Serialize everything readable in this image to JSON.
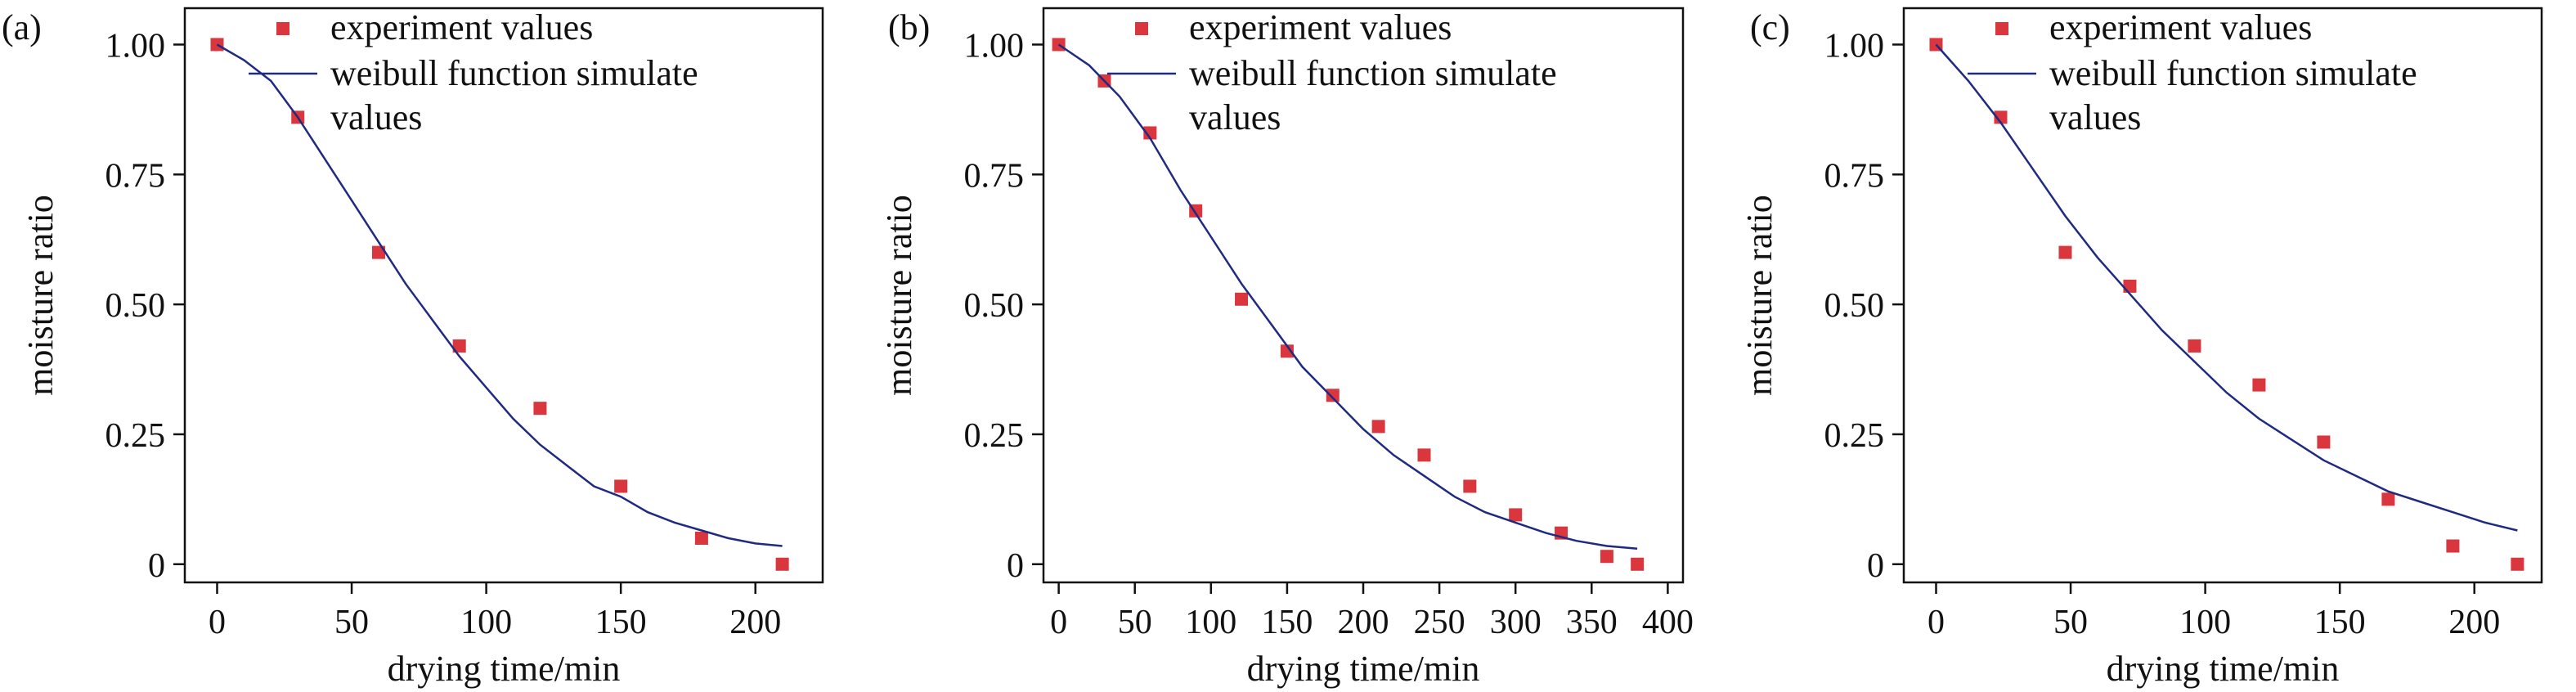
{
  "chart_data": [
    {
      "panel_label": "(a)",
      "type": "scatter",
      "xlabel": "drying time/min",
      "ylabel": "moisture ratio",
      "xlim": [
        -12,
        225
      ],
      "ylim": [
        -0.035,
        1.07
      ],
      "xticks": [
        0,
        50,
        100,
        150,
        200
      ],
      "yticks": [
        0,
        0.25,
        0.5,
        0.75,
        1.0
      ],
      "ytick_labels": [
        "0",
        "0.25",
        "0.50",
        "0.75",
        "1.00"
      ],
      "legend_position": "top-right",
      "series": [
        {
          "name": "experiment values",
          "type": "scatter",
          "color": "#d9363e",
          "x": [
            0,
            30,
            60,
            90,
            120,
            150,
            180,
            210
          ],
          "y": [
            1.0,
            0.86,
            0.6,
            0.42,
            0.3,
            0.15,
            0.05,
            0.0
          ]
        },
        {
          "name": "weibull function simulate values",
          "type": "line",
          "color": "#1f2a80",
          "x": [
            0,
            10,
            20,
            30,
            40,
            50,
            60,
            70,
            80,
            90,
            100,
            110,
            120,
            130,
            140,
            150,
            160,
            170,
            180,
            190,
            200,
            210
          ],
          "y": [
            1.0,
            0.97,
            0.93,
            0.86,
            0.78,
            0.7,
            0.62,
            0.54,
            0.47,
            0.4,
            0.34,
            0.28,
            0.23,
            0.19,
            0.15,
            0.13,
            0.1,
            0.08,
            0.065,
            0.05,
            0.04,
            0.035
          ]
        }
      ]
    },
    {
      "panel_label": "(b)",
      "type": "scatter",
      "xlabel": "drying time/min",
      "ylabel": "moisture ratio",
      "xlim": [
        -10,
        410
      ],
      "ylim": [
        -0.035,
        1.07
      ],
      "xticks": [
        0,
        50,
        100,
        150,
        200,
        250,
        300,
        350,
        400
      ],
      "yticks": [
        0,
        0.25,
        0.5,
        0.75,
        1.0
      ],
      "ytick_labels": [
        "0",
        "0.25",
        "0.50",
        "0.75",
        "1.00"
      ],
      "legend_position": "top-right",
      "series": [
        {
          "name": "experiment values",
          "type": "scatter",
          "color": "#d9363e",
          "x": [
            0,
            30,
            60,
            90,
            120,
            150,
            180,
            210,
            240,
            270,
            300,
            330,
            360,
            380
          ],
          "y": [
            1.0,
            0.93,
            0.83,
            0.68,
            0.51,
            0.41,
            0.325,
            0.265,
            0.21,
            0.15,
            0.095,
            0.06,
            0.015,
            0.0
          ]
        },
        {
          "name": "weibull function simulate values",
          "type": "line",
          "color": "#1f2a80",
          "x": [
            0,
            20,
            40,
            60,
            80,
            100,
            120,
            140,
            160,
            180,
            200,
            220,
            240,
            260,
            280,
            300,
            320,
            340,
            360,
            380
          ],
          "y": [
            1.0,
            0.96,
            0.9,
            0.82,
            0.72,
            0.63,
            0.54,
            0.46,
            0.38,
            0.32,
            0.26,
            0.21,
            0.17,
            0.13,
            0.1,
            0.08,
            0.06,
            0.045,
            0.035,
            0.03
          ]
        }
      ]
    },
    {
      "panel_label": "(c)",
      "type": "scatter",
      "xlabel": "drying time/min",
      "ylabel": "moisture ratio",
      "xlim": [
        -12,
        225
      ],
      "ylim": [
        -0.035,
        1.07
      ],
      "xticks": [
        0,
        50,
        100,
        150,
        200
      ],
      "yticks": [
        0,
        0.25,
        0.5,
        0.75,
        1.0
      ],
      "ytick_labels": [
        "0",
        "0.25",
        "0.50",
        "0.75",
        "1.00"
      ],
      "legend_position": "top-right",
      "series": [
        {
          "name": "experiment values",
          "type": "scatter",
          "color": "#d9363e",
          "x": [
            0,
            24,
            48,
            72,
            96,
            120,
            144,
            168,
            192,
            216
          ],
          "y": [
            1.0,
            0.86,
            0.6,
            0.535,
            0.42,
            0.345,
            0.235,
            0.125,
            0.035,
            0.0
          ]
        },
        {
          "name": "weibull function simulate values",
          "type": "line",
          "color": "#1f2a80",
          "x": [
            0,
            12,
            24,
            36,
            48,
            60,
            72,
            84,
            96,
            108,
            120,
            132,
            144,
            156,
            168,
            180,
            192,
            204,
            216
          ],
          "y": [
            1.0,
            0.93,
            0.85,
            0.76,
            0.67,
            0.59,
            0.52,
            0.45,
            0.39,
            0.33,
            0.28,
            0.24,
            0.2,
            0.17,
            0.14,
            0.12,
            0.1,
            0.08,
            0.065
          ]
        }
      ]
    }
  ],
  "legend": {
    "scatter_label": "experiment values",
    "line_label_1": "weibull function simulate",
    "line_label_2": "values"
  }
}
